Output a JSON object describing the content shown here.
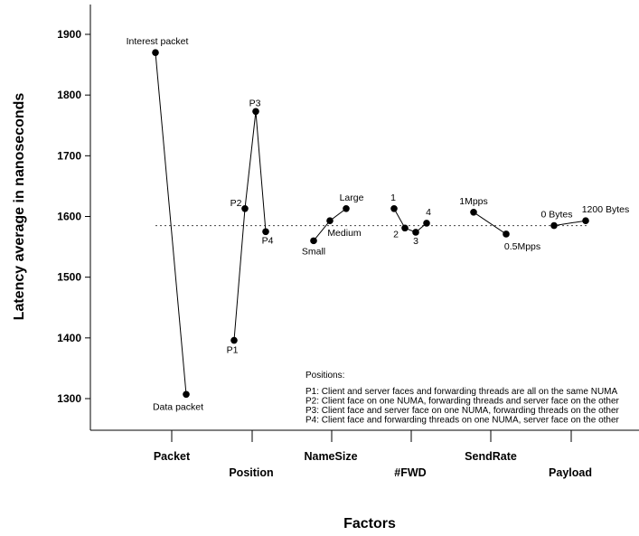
{
  "chart_data": {
    "type": "line",
    "xlabel": "Factors",
    "ylabel": "Latency average in nanoseconds",
    "ylim": [
      1250,
      1950
    ],
    "yticks": [
      1300,
      1400,
      1500,
      1600,
      1700,
      1800,
      1900
    ],
    "grand_mean": 1585,
    "factors": [
      {
        "name": "Packet",
        "points": [
          {
            "label": "Interest packet",
            "value": 1870
          },
          {
            "label": "Data packet",
            "value": 1307
          }
        ]
      },
      {
        "name": "Position",
        "points": [
          {
            "label": "P1",
            "value": 1396
          },
          {
            "label": "P2",
            "value": 1613
          },
          {
            "label": "P3",
            "value": 1773
          },
          {
            "label": "P4",
            "value": 1575
          }
        ]
      },
      {
        "name": "NameSize",
        "points": [
          {
            "label": "Small",
            "value": 1560
          },
          {
            "label": "Medium",
            "value": 1593
          },
          {
            "label": "Large",
            "value": 1613
          }
        ]
      },
      {
        "name": "#FWD",
        "points": [
          {
            "label": "1",
            "value": 1613
          },
          {
            "label": "2",
            "value": 1581
          },
          {
            "label": "3",
            "value": 1574
          },
          {
            "label": "4",
            "value": 1589
          }
        ]
      },
      {
        "name": "SendRate",
        "points": [
          {
            "label": "1Mpps",
            "value": 1607
          },
          {
            "label": "0.5Mpps",
            "value": 1571
          }
        ]
      },
      {
        "name": "Payload",
        "points": [
          {
            "label": "0 Bytes",
            "value": 1585
          },
          {
            "label": "1200 Bytes",
            "value": 1593
          }
        ]
      }
    ],
    "legend": {
      "title": "Positions:",
      "items": [
        "P1: Client and server faces and forwarding threads are all on the same NUMA",
        "P2: Client face on one NUMA, forwarding threads and server face on the other",
        "P3: Client face and server face on one NUMA, forwarding threads on the other",
        "P4: Client face and forwarding threads on one NUMA, server face on the other"
      ]
    },
    "grid": false
  }
}
